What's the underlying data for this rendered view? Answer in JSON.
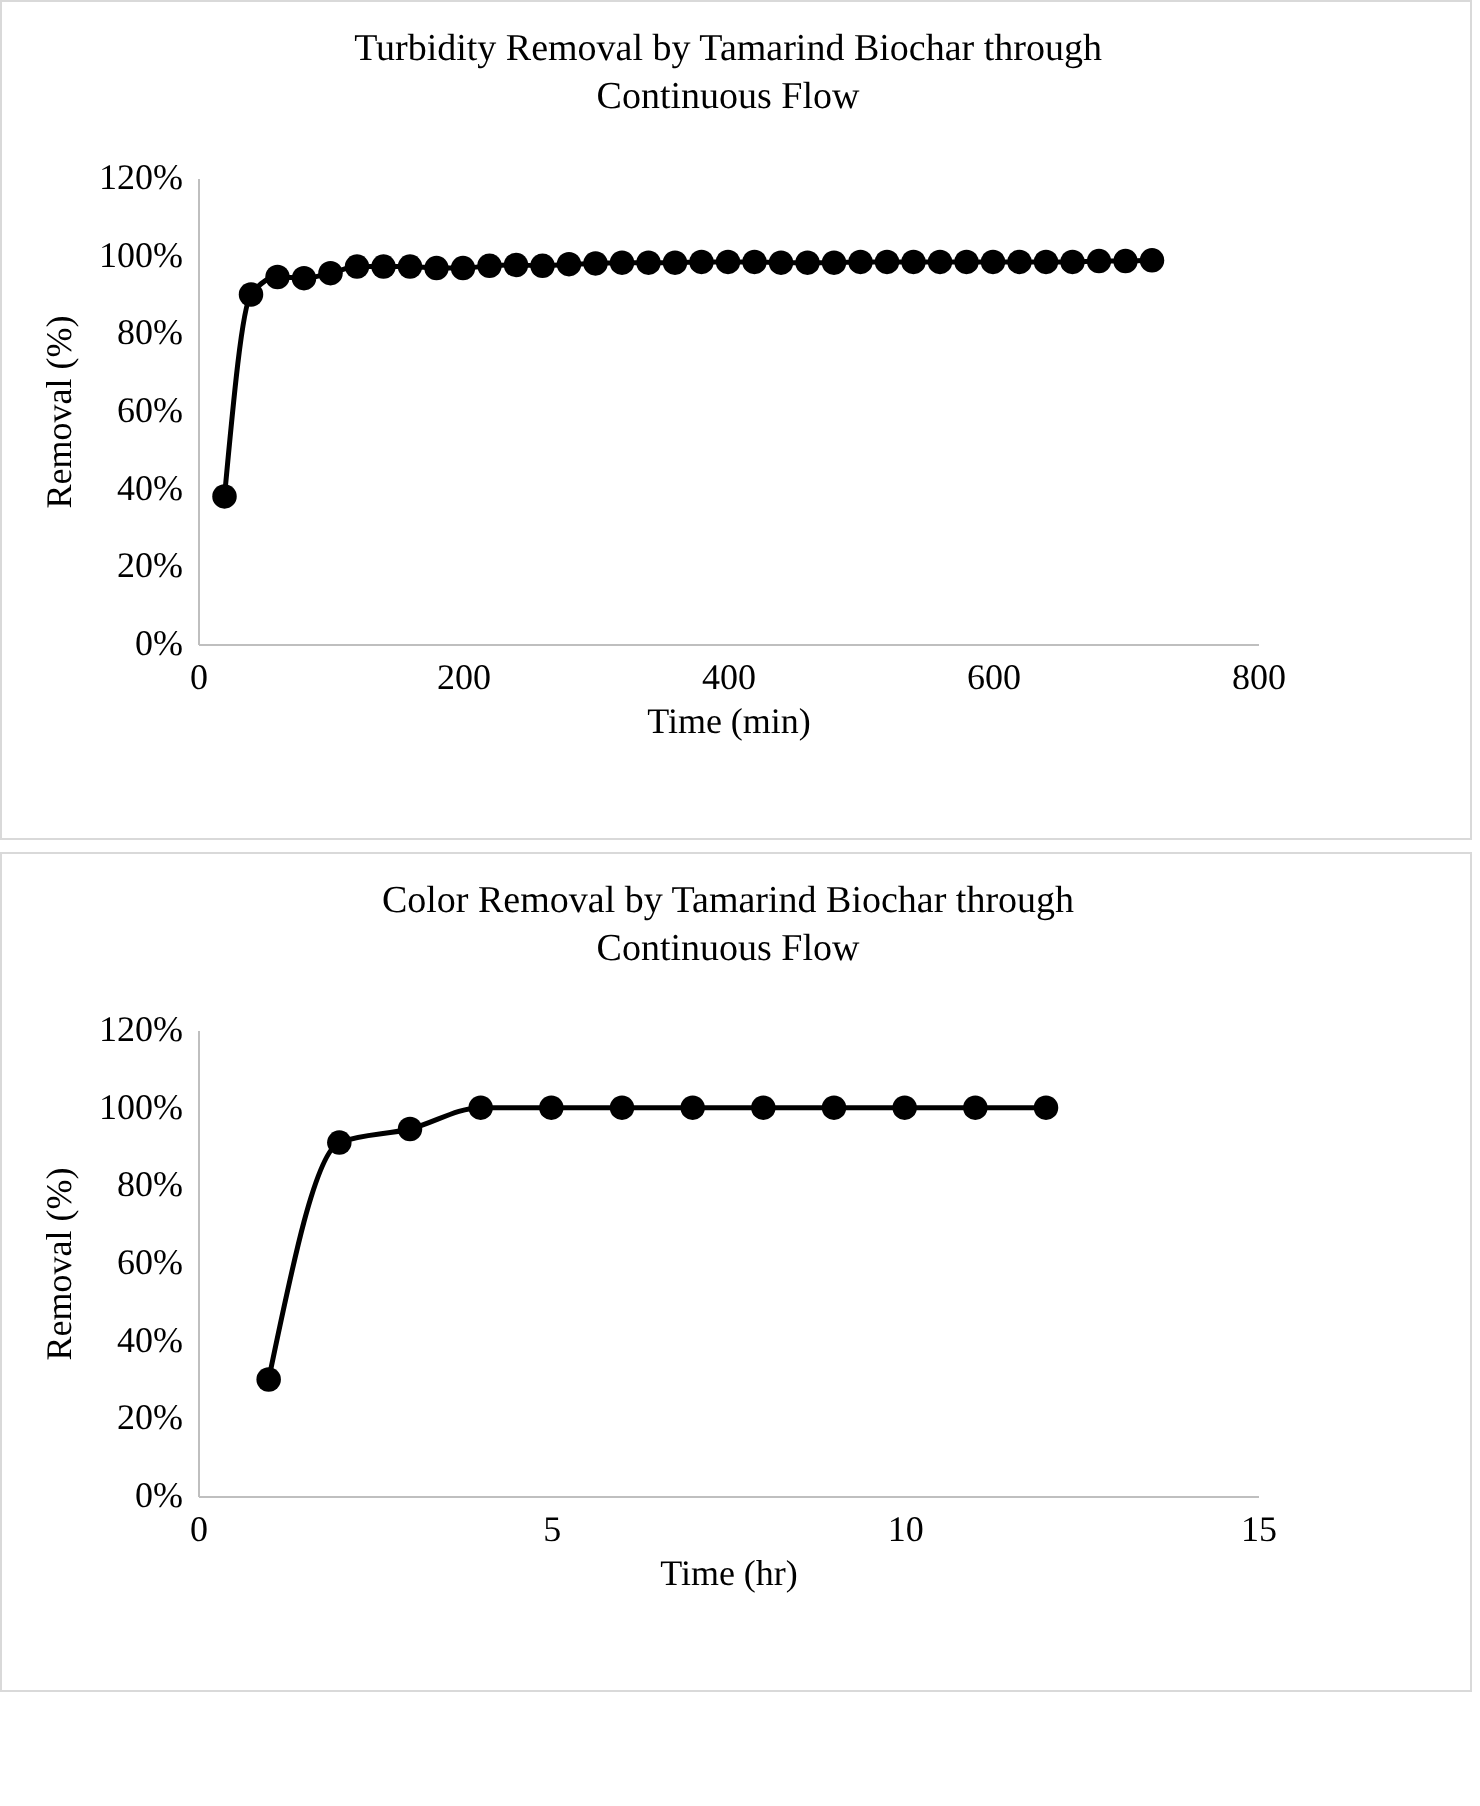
{
  "chart_data": [
    {
      "type": "line",
      "title": "Turbidity Removal by Tamarind Biochar through Continuous Flow",
      "xlabel": "Time (min)",
      "ylabel": "Removal (%)",
      "marker": "circle",
      "grid": false,
      "x": [
        20,
        40,
        60,
        80,
        100,
        120,
        140,
        160,
        180,
        200,
        220,
        240,
        260,
        280,
        300,
        320,
        340,
        360,
        380,
        400,
        420,
        440,
        460,
        480,
        500,
        520,
        540,
        560,
        580,
        600,
        620,
        640,
        660,
        680,
        700,
        720
      ],
      "series": [
        {
          "color": "#000000",
          "values": [
            38,
            90,
            94.5,
            94.2,
            95.5,
            97.2,
            97.2,
            97.2,
            96.8,
            96.8,
            97.4,
            97.6,
            97.4,
            97.8,
            98,
            98.2,
            98.2,
            98.2,
            98.4,
            98.4,
            98.4,
            98.2,
            98.2,
            98.2,
            98.4,
            98.4,
            98.4,
            98.4,
            98.4,
            98.4,
            98.4,
            98.4,
            98.4,
            98.6,
            98.6,
            98.8
          ]
        }
      ],
      "xlim": [
        0,
        800
      ],
      "xticks": [
        0,
        200,
        400,
        600,
        800
      ],
      "ylim": [
        0,
        120
      ],
      "yticks": [
        {
          "value": 0,
          "label": "0%"
        },
        {
          "value": 20,
          "label": "20%"
        },
        {
          "value": 40,
          "label": "40%"
        },
        {
          "value": 60,
          "label": "60%"
        },
        {
          "value": 80,
          "label": "80%"
        },
        {
          "value": 100,
          "label": "100%"
        },
        {
          "value": 120,
          "label": "120%"
        }
      ]
    },
    {
      "type": "line",
      "title": "Color Removal by Tamarind Biochar through Continuous Flow",
      "xlabel": "Time (hr)",
      "ylabel": "Removal (%)",
      "marker": "circle",
      "grid": false,
      "x": [
        1,
        2,
        3,
        4,
        5,
        6,
        7,
        8,
        9,
        10,
        11,
        12
      ],
      "series": [
        {
          "color": "#000000",
          "values": [
            30,
            91,
            94.5,
            100,
            100,
            100,
            100,
            100,
            100,
            100,
            100,
            100
          ]
        }
      ],
      "xlim": [
        0,
        15
      ],
      "xticks": [
        0,
        5,
        10,
        15
      ],
      "ylim": [
        0,
        120
      ],
      "yticks": [
        {
          "value": 0,
          "label": "0%"
        },
        {
          "value": 20,
          "label": "20%"
        },
        {
          "value": 40,
          "label": "40%"
        },
        {
          "value": 60,
          "label": "60%"
        },
        {
          "value": 80,
          "label": "80%"
        },
        {
          "value": 100,
          "label": "100%"
        },
        {
          "value": 120,
          "label": "120%"
        }
      ]
    }
  ]
}
